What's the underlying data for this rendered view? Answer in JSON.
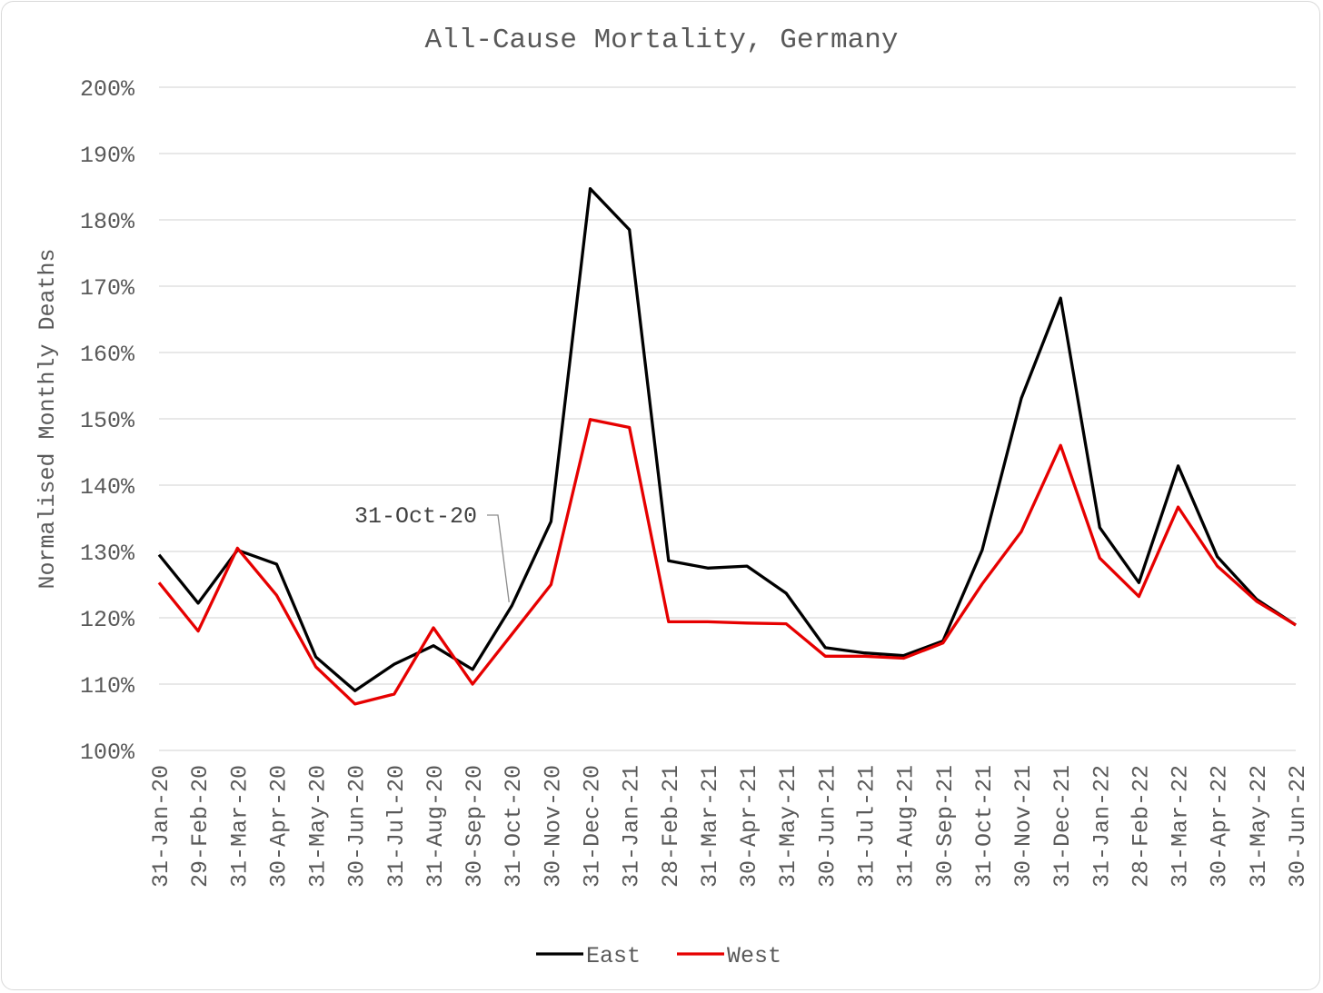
{
  "chart_data": {
    "type": "line",
    "title": "All-Cause Mortality, Germany",
    "ylabel": "Normalised Monthly Deaths",
    "xlabel": "",
    "ylim": [
      100,
      200
    ],
    "yticks": [
      "100%",
      "110%",
      "120%",
      "130%",
      "140%",
      "150%",
      "160%",
      "170%",
      "180%",
      "190%",
      "200%"
    ],
    "grid": true,
    "legend": "bottom",
    "categories": [
      "31-Jan-20",
      "29-Feb-20",
      "31-Mar-20",
      "30-Apr-20",
      "31-May-20",
      "30-Jun-20",
      "31-Jul-20",
      "31-Aug-20",
      "30-Sep-20",
      "31-Oct-20",
      "30-Nov-20",
      "31-Dec-20",
      "31-Jan-21",
      "28-Feb-21",
      "31-Mar-21",
      "30-Apr-21",
      "31-May-21",
      "30-Jun-21",
      "31-Jul-21",
      "31-Aug-21",
      "30-Sep-21",
      "31-Oct-21",
      "30-Nov-21",
      "31-Dec-21",
      "31-Jan-22",
      "28-Feb-22",
      "31-Mar-22",
      "30-Apr-22",
      "31-May-22",
      "30-Jun-22"
    ],
    "series": [
      {
        "name": "East",
        "color": "#000000",
        "values": [
          129.5,
          122.2,
          130.2,
          128.1,
          114.1,
          109.0,
          113.0,
          115.8,
          112.2,
          121.8,
          134.5,
          184.7,
          178.5,
          128.6,
          127.5,
          127.8,
          123.7,
          115.5,
          114.7,
          114.3,
          116.5,
          130.2,
          153.1,
          168.2,
          133.6,
          125.3,
          142.9,
          129.2,
          122.8,
          118.9
        ]
      },
      {
        "name": "West",
        "color": "#e60000",
        "values": [
          125.3,
          118.0,
          130.5,
          123.4,
          112.6,
          107.0,
          108.5,
          118.5,
          110.0,
          117.5,
          125.0,
          149.9,
          148.7,
          119.4,
          119.4,
          119.2,
          119.1,
          114.2,
          114.2,
          113.9,
          116.2,
          125.1,
          133.0,
          146.0,
          129.0,
          123.2,
          136.7,
          127.8,
          122.5,
          118.9
        ]
      }
    ],
    "annotations": [
      {
        "text": "31-Oct-20",
        "category_index": 9,
        "series": "East"
      }
    ]
  }
}
